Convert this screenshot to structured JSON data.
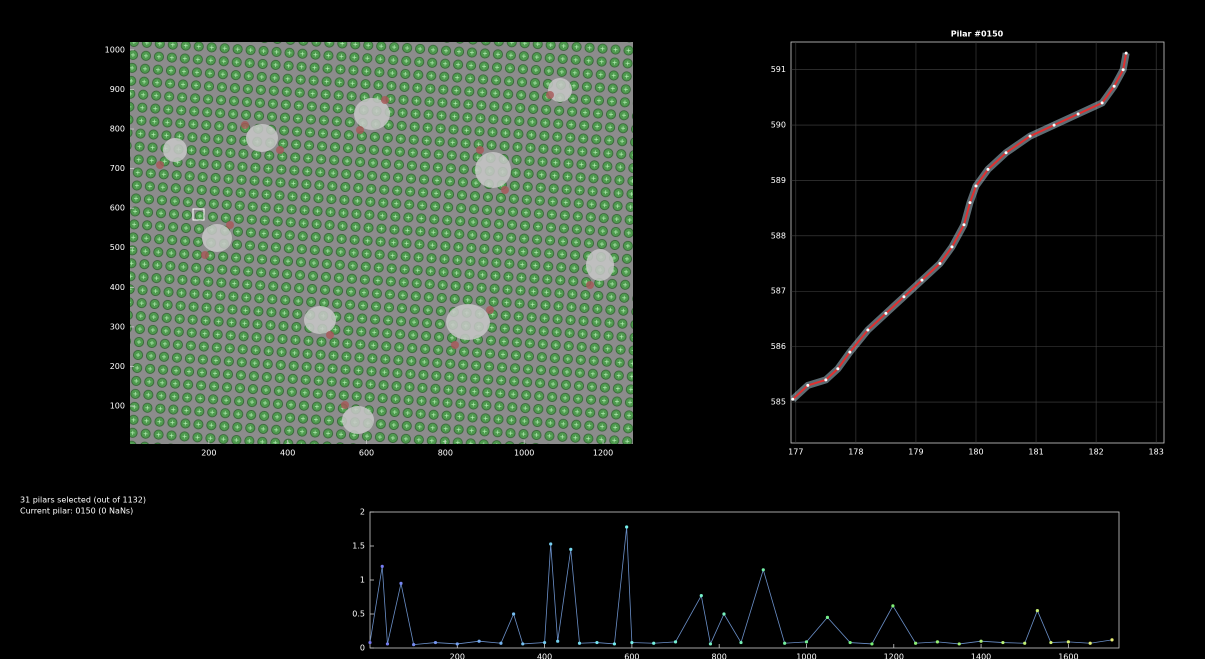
{
  "image_panel": {
    "xlim": [
      0,
      1276
    ],
    "ylim": [
      4,
      1020
    ],
    "xticks": [
      200,
      400,
      600,
      800,
      1000,
      1200
    ],
    "yticks": [
      100,
      200,
      300,
      400,
      500,
      600,
      700,
      800,
      900,
      1000
    ]
  },
  "trajectory_plot": {
    "title": "Pilar #0150",
    "xlim": [
      176.92,
      183.13
    ],
    "ylim": [
      584.26,
      591.5
    ],
    "xticks": [
      177,
      178,
      179,
      180,
      181,
      182,
      183
    ],
    "yticks": [
      585,
      586,
      587,
      588,
      589,
      590,
      591
    ],
    "grid": true,
    "color": "#e03030",
    "x": [
      176.95,
      177.2,
      177.5,
      177.7,
      177.9,
      178.2,
      178.5,
      178.8,
      179.1,
      179.4,
      179.6,
      179.8,
      179.9,
      180.0,
      180.2,
      180.5,
      180.9,
      181.3,
      181.7,
      182.1,
      182.3,
      182.45,
      182.5
    ],
    "y": [
      585.05,
      585.3,
      585.4,
      585.6,
      585.9,
      586.3,
      586.6,
      586.9,
      587.2,
      587.5,
      587.8,
      588.2,
      588.6,
      588.9,
      589.2,
      589.5,
      589.8,
      590.0,
      590.2,
      590.4,
      590.7,
      591.0,
      591.3
    ]
  },
  "status": {
    "line1": "31 pilars selected (out of 1132)",
    "line2": "Current pilar: 0150 (0 NaNs)"
  },
  "displacement_plot": {
    "xlim": [
      0,
      1716
    ],
    "ylim": [
      0,
      2
    ],
    "xticks": [
      200,
      400,
      600,
      800,
      1000,
      1200,
      1400,
      1600
    ],
    "yticks": [
      0,
      0.5,
      1,
      1.5,
      2
    ],
    "x": [
      0,
      28,
      40,
      71,
      100,
      150,
      200,
      250,
      300,
      329,
      350,
      400,
      414,
      430,
      460,
      480,
      520,
      560,
      588,
      600,
      650,
      700,
      759,
      780,
      811,
      850,
      901,
      950,
      1000,
      1048,
      1100,
      1150,
      1198,
      1250,
      1300,
      1350,
      1400,
      1450,
      1500,
      1529,
      1560,
      1600,
      1650,
      1700
    ],
    "y": [
      0.08,
      1.2,
      0.06,
      0.95,
      0.05,
      0.08,
      0.06,
      0.1,
      0.07,
      0.5,
      0.06,
      0.08,
      1.53,
      0.1,
      1.45,
      0.07,
      0.08,
      0.06,
      1.78,
      0.08,
      0.07,
      0.09,
      0.77,
      0.06,
      0.5,
      0.08,
      1.15,
      0.07,
      0.09,
      0.45,
      0.08,
      0.06,
      0.62,
      0.07,
      0.09,
      0.06,
      0.1,
      0.08,
      0.07,
      0.55,
      0.08,
      0.09,
      0.07,
      0.12
    ]
  }
}
